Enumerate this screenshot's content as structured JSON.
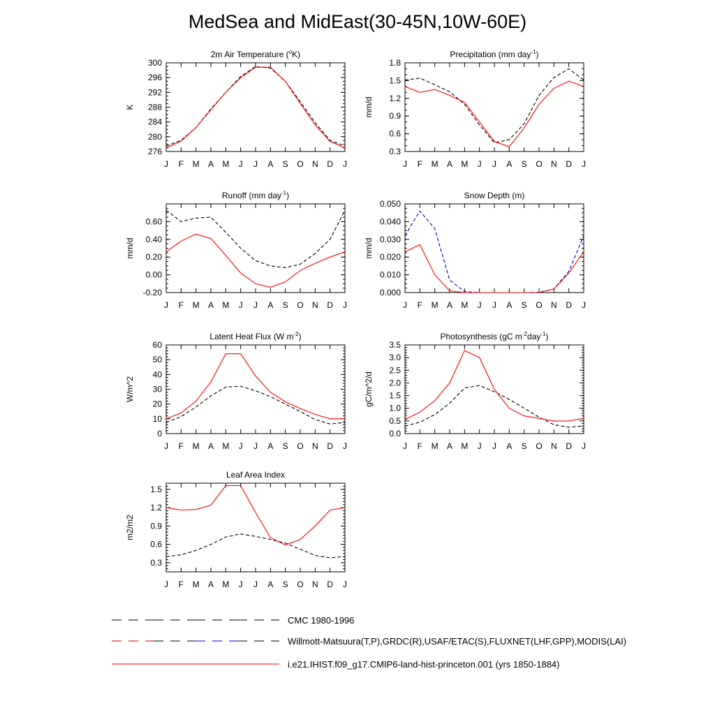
{
  "title": "MedSea and MidEast(30-45N,10W-60E)",
  "months": [
    "J",
    "F",
    "M",
    "A",
    "M",
    "J",
    "J",
    "A",
    "S",
    "O",
    "N",
    "D",
    "J"
  ],
  "legend": [
    {
      "label": "CMC 1980-1996",
      "style": "dash",
      "colors": [
        "#000000"
      ]
    },
    {
      "label": "Willmott-Matsuura(T,P),GRDC(R),USAF/ETAC(S),FLUXNET(LHF,GPP),MODIS(LAI)",
      "style": "dash",
      "colors": [
        "#cc0000",
        "#000000",
        "#0000cc",
        "#000000"
      ]
    },
    {
      "label": "i.e21.IHIST.f09_g17.CMIP6-land-hist-princeton.001 (yrs 1850-1884)",
      "style": "solid",
      "colors": [
        "#ff0000"
      ]
    }
  ],
  "chart_data": [
    {
      "type": "line",
      "title": "2m Air Temperature (°K)",
      "title_parts": {
        "main": "2m Air Temperature (",
        "sup": "o",
        "tail": "K)"
      },
      "ylabel": "K",
      "ylim": [
        276,
        300
      ],
      "yticks": [
        276,
        280,
        284,
        288,
        292,
        296,
        300
      ],
      "ytick_labels": [
        "276",
        "280",
        "284",
        "288",
        "292",
        "296",
        "300"
      ],
      "yminor": 1,
      "series": [
        {
          "color": "#000000",
          "dash": true,
          "values": [
            277.5,
            279,
            282.5,
            287.5,
            292,
            296.3,
            299,
            298.6,
            295,
            289.5,
            283.8,
            279,
            277.5
          ]
        },
        {
          "color": "#ff0000",
          "dash": false,
          "values": [
            277,
            278.8,
            282.5,
            287.3,
            292,
            296,
            298.8,
            298.8,
            295,
            289,
            283.2,
            278.7,
            277
          ]
        }
      ]
    },
    {
      "type": "line",
      "title": "Precipitation (mm day-1)",
      "title_parts": {
        "main": "Precipitation (mm day",
        "sup": "-1",
        "tail": ")"
      },
      "ylabel": "mm/d",
      "ylim": [
        0.3,
        1.8
      ],
      "yticks": [
        0.3,
        0.6,
        0.9,
        1.2,
        1.5,
        1.8
      ],
      "ytick_labels": [
        "0.3",
        "0.6",
        "0.9",
        "1.2",
        "1.5",
        "1.8"
      ],
      "yminor": 0.1,
      "series": [
        {
          "color": "#000000",
          "dash": true,
          "values": [
            1.51,
            1.54,
            1.43,
            1.31,
            1.1,
            0.75,
            0.45,
            0.5,
            0.77,
            1.25,
            1.55,
            1.7,
            1.51
          ]
        },
        {
          "color": "#ff0000",
          "dash": false,
          "values": [
            1.4,
            1.3,
            1.35,
            1.25,
            1.13,
            0.8,
            0.47,
            0.38,
            0.7,
            1.1,
            1.37,
            1.49,
            1.4
          ]
        }
      ]
    },
    {
      "type": "line",
      "title": "Runoff (mm day-1)",
      "title_parts": {
        "main": "Runoff (mm day",
        "sup": "-1",
        "tail": ")"
      },
      "ylabel": "mm/d",
      "ylim": [
        -0.2,
        0.8
      ],
      "yticks": [
        -0.2,
        0.0,
        0.2,
        0.4,
        0.6
      ],
      "ytick_labels": [
        "-0.20",
        "0.00",
        "0.20",
        "0.40",
        "0.60"
      ],
      "yminor": 0.05,
      "series": [
        {
          "color": "#000000",
          "dash": true,
          "values": [
            0.73,
            0.6,
            0.64,
            0.65,
            0.48,
            0.3,
            0.16,
            0.1,
            0.08,
            0.12,
            0.24,
            0.4,
            0.73
          ]
        },
        {
          "color": "#ff0000",
          "dash": false,
          "values": [
            0.26,
            0.38,
            0.46,
            0.41,
            0.22,
            0.02,
            -0.1,
            -0.14,
            -0.08,
            0.05,
            0.13,
            0.2,
            0.26
          ]
        }
      ]
    },
    {
      "type": "line",
      "title": "Snow Depth (m)",
      "title_parts": {
        "main": "Snow Depth (m)",
        "sup": "",
        "tail": ""
      },
      "ylabel": "mm/d",
      "ylim": [
        0,
        0.05
      ],
      "yticks": [
        0,
        0.01,
        0.02,
        0.03,
        0.04,
        0.05
      ],
      "ytick_labels": [
        "0.000",
        "0.010",
        "0.020",
        "0.030",
        "0.040",
        "0.050"
      ],
      "yminor": 0.0025,
      "series": [
        {
          "color": "#000000",
          "dash": true,
          "values": [
            0,
            0,
            0,
            0,
            0,
            0,
            0,
            0,
            0,
            0,
            0,
            0,
            0
          ]
        },
        {
          "color": "#0000cc",
          "dash": true,
          "values": [
            0.032,
            0.046,
            0.036,
            0.007,
            0.0005,
            0,
            0,
            0,
            0,
            0.0002,
            0.002,
            0.012,
            0.032
          ]
        },
        {
          "color": "#ff0000",
          "dash": false,
          "values": [
            0.023,
            0.027,
            0.01,
            0.001,
            0,
            0,
            0,
            0,
            0,
            0,
            0.002,
            0.011,
            0.023
          ]
        }
      ]
    },
    {
      "type": "line",
      "title": "Latent Heat Flux (W m-2)",
      "title_parts": {
        "main": "Latent Heat Flux (W m",
        "sup": "-2",
        "tail": ")"
      },
      "ylabel": "W/m^2",
      "ylim": [
        0,
        60
      ],
      "yticks": [
        0,
        10,
        20,
        30,
        40,
        50,
        60
      ],
      "ytick_labels": [
        "0",
        "10",
        "20",
        "30",
        "40",
        "50",
        "60"
      ],
      "yminor": 2,
      "series": [
        {
          "color": "#000000",
          "dash": true,
          "values": [
            7.5,
            11.5,
            18,
            25.5,
            31.5,
            32,
            29,
            25,
            20,
            15,
            9.5,
            6.5,
            7.5
          ]
        },
        {
          "color": "#ff0000",
          "dash": false,
          "values": [
            10,
            14,
            22,
            35,
            54,
            54,
            39,
            28,
            21.5,
            17,
            13,
            10,
            10
          ]
        }
      ]
    },
    {
      "type": "line",
      "title": "Photosynthesis (gC m-2day-1)",
      "title_parts": {
        "main": "Photosynthesis (gC m",
        "sup": "-2",
        "tail": "day",
        "sup2": "-1",
        "tail2": ")"
      },
      "ylabel": "gC/m^2/d",
      "ylim": [
        0,
        3.5
      ],
      "yticks": [
        0,
        0.5,
        1,
        1.5,
        2,
        2.5,
        3,
        3.5
      ],
      "ytick_labels": [
        "0.0",
        "0.5",
        "1.0",
        "1.5",
        "2.0",
        "2.5",
        "3.0",
        "3.5"
      ],
      "yminor": 0.1,
      "series": [
        {
          "color": "#000000",
          "dash": true,
          "values": [
            0.3,
            0.45,
            0.75,
            1.2,
            1.8,
            1.9,
            1.65,
            1.35,
            1.0,
            0.65,
            0.35,
            0.25,
            0.3
          ]
        },
        {
          "color": "#ff0000",
          "dash": false,
          "values": [
            0.55,
            0.85,
            1.3,
            2.0,
            3.28,
            3.0,
            1.75,
            1.0,
            0.7,
            0.6,
            0.5,
            0.5,
            0.6
          ]
        }
      ]
    },
    {
      "type": "line",
      "title": "Leaf Area Index",
      "title_parts": {
        "main": "Leaf Area Index",
        "sup": "",
        "tail": ""
      },
      "ylabel": "m2/m2",
      "ylim": [
        0.15,
        1.6
      ],
      "yticks": [
        0.3,
        0.6,
        0.9,
        1.2,
        1.5
      ],
      "ytick_labels": [
        "0.3",
        "0.6",
        "0.9",
        "1.2",
        "1.5"
      ],
      "yminor": 0.05,
      "series": [
        {
          "color": "#000000",
          "dash": true,
          "values": [
            0.4,
            0.43,
            0.5,
            0.6,
            0.72,
            0.77,
            0.73,
            0.68,
            0.62,
            0.52,
            0.42,
            0.38,
            0.4
          ]
        },
        {
          "color": "#ff0000",
          "dash": false,
          "values": [
            1.2,
            1.16,
            1.17,
            1.24,
            1.56,
            1.56,
            1.12,
            0.71,
            0.59,
            0.68,
            0.9,
            1.16,
            1.2
          ]
        }
      ]
    }
  ]
}
